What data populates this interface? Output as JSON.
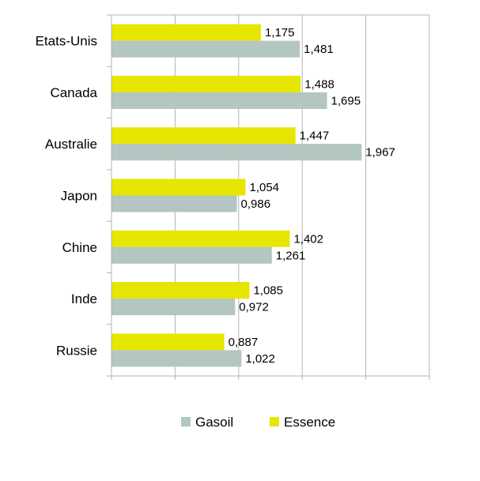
{
  "chart_data": {
    "type": "bar",
    "orientation": "horizontal",
    "categories": [
      "Etats-Unis",
      "Canada",
      "Australie",
      "Japon",
      "Chine",
      "Inde",
      "Russie"
    ],
    "series": [
      {
        "name": "Essence",
        "color": "#e6e600",
        "values": [
          1.175,
          1.488,
          1.447,
          1.054,
          1.402,
          1.085,
          0.887
        ],
        "labels": [
          "1,175",
          "1,488",
          "1,447",
          "1,054",
          "1,402",
          "1,085",
          "0,887"
        ]
      },
      {
        "name": "Gasoil",
        "color": "#b3c6c2",
        "values": [
          1.481,
          1.695,
          1.967,
          0.986,
          1.261,
          0.972,
          1.022
        ],
        "labels": [
          "1,481",
          "1,695",
          "1,967",
          "0,986",
          "1,261",
          "0,972",
          "1,022"
        ]
      }
    ],
    "legend": {
      "placement": "bottom",
      "order": [
        "Gasoil",
        "Essence"
      ]
    },
    "xlim": [
      0,
      2.5
    ],
    "grid": true,
    "tick_labels_visible": false
  }
}
